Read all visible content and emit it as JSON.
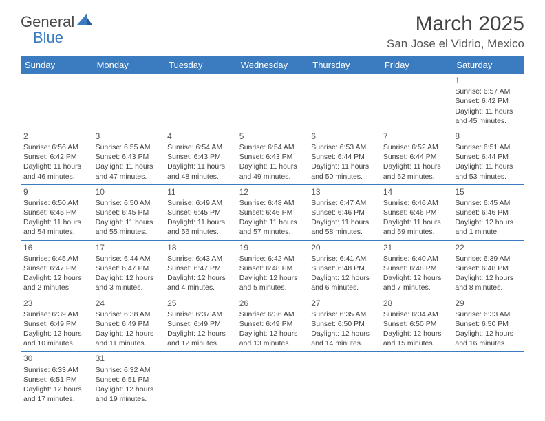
{
  "logo": {
    "general": "General",
    "blue": "Blue"
  },
  "title": "March 2025",
  "location": "San Jose el Vidrio, Mexico",
  "dayHeaders": [
    "Sunday",
    "Monday",
    "Tuesday",
    "Wednesday",
    "Thursday",
    "Friday",
    "Saturday"
  ],
  "colors": {
    "headerBg": "#3b7bbf",
    "headerText": "#ffffff",
    "border": "#3b7bbf",
    "text": "#444444",
    "background": "#ffffff"
  },
  "weeks": [
    [
      null,
      null,
      null,
      null,
      null,
      null,
      {
        "n": "1",
        "sr": "Sunrise: 6:57 AM",
        "ss": "Sunset: 6:42 PM",
        "dl": "Daylight: 11 hours and 45 minutes."
      }
    ],
    [
      {
        "n": "2",
        "sr": "Sunrise: 6:56 AM",
        "ss": "Sunset: 6:42 PM",
        "dl": "Daylight: 11 hours and 46 minutes."
      },
      {
        "n": "3",
        "sr": "Sunrise: 6:55 AM",
        "ss": "Sunset: 6:43 PM",
        "dl": "Daylight: 11 hours and 47 minutes."
      },
      {
        "n": "4",
        "sr": "Sunrise: 6:54 AM",
        "ss": "Sunset: 6:43 PM",
        "dl": "Daylight: 11 hours and 48 minutes."
      },
      {
        "n": "5",
        "sr": "Sunrise: 6:54 AM",
        "ss": "Sunset: 6:43 PM",
        "dl": "Daylight: 11 hours and 49 minutes."
      },
      {
        "n": "6",
        "sr": "Sunrise: 6:53 AM",
        "ss": "Sunset: 6:44 PM",
        "dl": "Daylight: 11 hours and 50 minutes."
      },
      {
        "n": "7",
        "sr": "Sunrise: 6:52 AM",
        "ss": "Sunset: 6:44 PM",
        "dl": "Daylight: 11 hours and 52 minutes."
      },
      {
        "n": "8",
        "sr": "Sunrise: 6:51 AM",
        "ss": "Sunset: 6:44 PM",
        "dl": "Daylight: 11 hours and 53 minutes."
      }
    ],
    [
      {
        "n": "9",
        "sr": "Sunrise: 6:50 AM",
        "ss": "Sunset: 6:45 PM",
        "dl": "Daylight: 11 hours and 54 minutes."
      },
      {
        "n": "10",
        "sr": "Sunrise: 6:50 AM",
        "ss": "Sunset: 6:45 PM",
        "dl": "Daylight: 11 hours and 55 minutes."
      },
      {
        "n": "11",
        "sr": "Sunrise: 6:49 AM",
        "ss": "Sunset: 6:45 PM",
        "dl": "Daylight: 11 hours and 56 minutes."
      },
      {
        "n": "12",
        "sr": "Sunrise: 6:48 AM",
        "ss": "Sunset: 6:46 PM",
        "dl": "Daylight: 11 hours and 57 minutes."
      },
      {
        "n": "13",
        "sr": "Sunrise: 6:47 AM",
        "ss": "Sunset: 6:46 PM",
        "dl": "Daylight: 11 hours and 58 minutes."
      },
      {
        "n": "14",
        "sr": "Sunrise: 6:46 AM",
        "ss": "Sunset: 6:46 PM",
        "dl": "Daylight: 11 hours and 59 minutes."
      },
      {
        "n": "15",
        "sr": "Sunrise: 6:45 AM",
        "ss": "Sunset: 6:46 PM",
        "dl": "Daylight: 12 hours and 1 minute."
      }
    ],
    [
      {
        "n": "16",
        "sr": "Sunrise: 6:45 AM",
        "ss": "Sunset: 6:47 PM",
        "dl": "Daylight: 12 hours and 2 minutes."
      },
      {
        "n": "17",
        "sr": "Sunrise: 6:44 AM",
        "ss": "Sunset: 6:47 PM",
        "dl": "Daylight: 12 hours and 3 minutes."
      },
      {
        "n": "18",
        "sr": "Sunrise: 6:43 AM",
        "ss": "Sunset: 6:47 PM",
        "dl": "Daylight: 12 hours and 4 minutes."
      },
      {
        "n": "19",
        "sr": "Sunrise: 6:42 AM",
        "ss": "Sunset: 6:48 PM",
        "dl": "Daylight: 12 hours and 5 minutes."
      },
      {
        "n": "20",
        "sr": "Sunrise: 6:41 AM",
        "ss": "Sunset: 6:48 PM",
        "dl": "Daylight: 12 hours and 6 minutes."
      },
      {
        "n": "21",
        "sr": "Sunrise: 6:40 AM",
        "ss": "Sunset: 6:48 PM",
        "dl": "Daylight: 12 hours and 7 minutes."
      },
      {
        "n": "22",
        "sr": "Sunrise: 6:39 AM",
        "ss": "Sunset: 6:48 PM",
        "dl": "Daylight: 12 hours and 8 minutes."
      }
    ],
    [
      {
        "n": "23",
        "sr": "Sunrise: 6:39 AM",
        "ss": "Sunset: 6:49 PM",
        "dl": "Daylight: 12 hours and 10 minutes."
      },
      {
        "n": "24",
        "sr": "Sunrise: 6:38 AM",
        "ss": "Sunset: 6:49 PM",
        "dl": "Daylight: 12 hours and 11 minutes."
      },
      {
        "n": "25",
        "sr": "Sunrise: 6:37 AM",
        "ss": "Sunset: 6:49 PM",
        "dl": "Daylight: 12 hours and 12 minutes."
      },
      {
        "n": "26",
        "sr": "Sunrise: 6:36 AM",
        "ss": "Sunset: 6:49 PM",
        "dl": "Daylight: 12 hours and 13 minutes."
      },
      {
        "n": "27",
        "sr": "Sunrise: 6:35 AM",
        "ss": "Sunset: 6:50 PM",
        "dl": "Daylight: 12 hours and 14 minutes."
      },
      {
        "n": "28",
        "sr": "Sunrise: 6:34 AM",
        "ss": "Sunset: 6:50 PM",
        "dl": "Daylight: 12 hours and 15 minutes."
      },
      {
        "n": "29",
        "sr": "Sunrise: 6:33 AM",
        "ss": "Sunset: 6:50 PM",
        "dl": "Daylight: 12 hours and 16 minutes."
      }
    ],
    [
      {
        "n": "30",
        "sr": "Sunrise: 6:33 AM",
        "ss": "Sunset: 6:51 PM",
        "dl": "Daylight: 12 hours and 17 minutes."
      },
      {
        "n": "31",
        "sr": "Sunrise: 6:32 AM",
        "ss": "Sunset: 6:51 PM",
        "dl": "Daylight: 12 hours and 19 minutes."
      },
      null,
      null,
      null,
      null,
      null
    ]
  ]
}
